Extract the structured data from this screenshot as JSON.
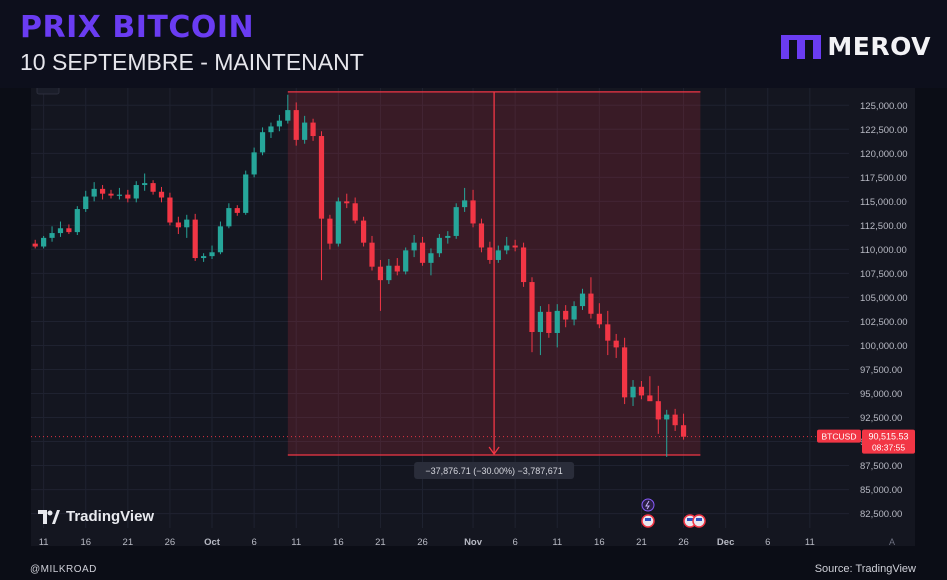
{
  "header": {
    "title": "PRIX BITCOIN",
    "subtitle": "10 SEPTEMBRE - MAINTENANT",
    "brand": "MEROV"
  },
  "footer": {
    "handle": "@MILKROAD",
    "source": "Source: TradingView"
  },
  "watermark": "TradingView",
  "colors": {
    "up": "#26a69a",
    "down": "#f23645",
    "accent": "#6a3cf2",
    "background": "#141620"
  },
  "chart_data": {
    "type": "candlestick",
    "symbol": "BTCUSD",
    "ylim": [
      81000,
      126800
    ],
    "y_ticks": [
      82500,
      85000,
      87500,
      90000,
      92500,
      95000,
      97500,
      100000,
      102500,
      105000,
      107500,
      110000,
      112500,
      115000,
      117500,
      120000,
      122500,
      125000
    ],
    "y_tick_labels": [
      "82,500.00",
      "85,000.00",
      "87,500.00",
      "90,000.00",
      "92,500.00",
      "95,000.00",
      "97,500.00",
      "100,000.00",
      "102,500.00",
      "105,000.00",
      "107,500.00",
      "110,000.00",
      "112,500.00",
      "115,000.00",
      "117,500.00",
      "120,000.00",
      "122,500.00",
      "125,000.00"
    ],
    "x_ticks": [
      {
        "day": 11,
        "label": "11"
      },
      {
        "day": 16,
        "label": "16"
      },
      {
        "day": 21,
        "label": "21"
      },
      {
        "day": 26,
        "label": "26"
      },
      {
        "day": 31,
        "label": "Oct"
      },
      {
        "day": 36,
        "label": "6"
      },
      {
        "day": 41,
        "label": "11"
      },
      {
        "day": 46,
        "label": "16"
      },
      {
        "day": 51,
        "label": "21"
      },
      {
        "day": 56,
        "label": "26"
      },
      {
        "day": 62,
        "label": "Nov"
      },
      {
        "day": 67,
        "label": "6"
      },
      {
        "day": 72,
        "label": "11"
      },
      {
        "day": 77,
        "label": "16"
      },
      {
        "day": 82,
        "label": "21"
      },
      {
        "day": 87,
        "label": "26"
      },
      {
        "day": 92,
        "label": "Dec"
      },
      {
        "day": 97,
        "label": "6"
      },
      {
        "day": 102,
        "label": "11"
      }
    ],
    "candles": [
      {
        "day": 10,
        "o": 110600,
        "h": 111000,
        "l": 110100,
        "c": 110300
      },
      {
        "day": 11,
        "o": 110300,
        "h": 111400,
        "l": 110100,
        "c": 111200
      },
      {
        "day": 12,
        "o": 111200,
        "h": 112400,
        "l": 110800,
        "c": 111700
      },
      {
        "day": 13,
        "o": 111700,
        "h": 112900,
        "l": 111300,
        "c": 112200
      },
      {
        "day": 14,
        "o": 112200,
        "h": 112600,
        "l": 111600,
        "c": 111800
      },
      {
        "day": 15,
        "o": 111800,
        "h": 114500,
        "l": 111500,
        "c": 114200
      },
      {
        "day": 16,
        "o": 114200,
        "h": 116100,
        "l": 113900,
        "c": 115500
      },
      {
        "day": 17,
        "o": 115500,
        "h": 117000,
        "l": 115000,
        "c": 116300
      },
      {
        "day": 18,
        "o": 116300,
        "h": 116700,
        "l": 115200,
        "c": 115800
      },
      {
        "day": 19,
        "o": 115800,
        "h": 116200,
        "l": 115300,
        "c": 115600
      },
      {
        "day": 20,
        "o": 115600,
        "h": 116400,
        "l": 115200,
        "c": 115700
      },
      {
        "day": 21,
        "o": 115700,
        "h": 116200,
        "l": 114900,
        "c": 115300
      },
      {
        "day": 22,
        "o": 115300,
        "h": 117100,
        "l": 114900,
        "c": 116700
      },
      {
        "day": 23,
        "o": 116700,
        "h": 117900,
        "l": 116100,
        "c": 116900
      },
      {
        "day": 24,
        "o": 116900,
        "h": 117200,
        "l": 115700,
        "c": 116000
      },
      {
        "day": 25,
        "o": 116000,
        "h": 116500,
        "l": 114900,
        "c": 115400
      },
      {
        "day": 26,
        "o": 115400,
        "h": 115900,
        "l": 112500,
        "c": 112800
      },
      {
        "day": 27,
        "o": 112800,
        "h": 113400,
        "l": 111600,
        "c": 112300
      },
      {
        "day": 28,
        "o": 112300,
        "h": 113600,
        "l": 111200,
        "c": 113100
      },
      {
        "day": 29,
        "o": 113100,
        "h": 113700,
        "l": 108800,
        "c": 109100
      },
      {
        "day": 30,
        "o": 109100,
        "h": 109600,
        "l": 108700,
        "c": 109300
      },
      {
        "day": 31,
        "o": 109300,
        "h": 110400,
        "l": 109000,
        "c": 109700
      },
      {
        "day": 32,
        "o": 109700,
        "h": 112900,
        "l": 109500,
        "c": 112400
      },
      {
        "day": 33,
        "o": 112400,
        "h": 114800,
        "l": 112200,
        "c": 114300
      },
      {
        "day": 34,
        "o": 114300,
        "h": 114600,
        "l": 113500,
        "c": 113800
      },
      {
        "day": 35,
        "o": 113800,
        "h": 118200,
        "l": 113600,
        "c": 117800
      },
      {
        "day": 36,
        "o": 117800,
        "h": 120600,
        "l": 117500,
        "c": 120100
      },
      {
        "day": 37,
        "o": 120100,
        "h": 122700,
        "l": 119800,
        "c": 122200
      },
      {
        "day": 38,
        "o": 122200,
        "h": 123200,
        "l": 121600,
        "c": 122800
      },
      {
        "day": 39,
        "o": 122800,
        "h": 124000,
        "l": 122300,
        "c": 123400
      },
      {
        "day": 40,
        "o": 123400,
        "h": 126100,
        "l": 123100,
        "c": 124500
      },
      {
        "day": 41,
        "o": 124500,
        "h": 125300,
        "l": 120800,
        "c": 121400
      },
      {
        "day": 42,
        "o": 121400,
        "h": 123900,
        "l": 121000,
        "c": 123200
      },
      {
        "day": 43,
        "o": 123200,
        "h": 123600,
        "l": 121300,
        "c": 121800
      },
      {
        "day": 44,
        "o": 121800,
        "h": 122300,
        "l": 106800,
        "c": 113200
      },
      {
        "day": 45,
        "o": 113200,
        "h": 113600,
        "l": 110000,
        "c": 110600
      },
      {
        "day": 46,
        "o": 110600,
        "h": 115400,
        "l": 110300,
        "c": 115000
      },
      {
        "day": 47,
        "o": 115000,
        "h": 115800,
        "l": 114300,
        "c": 114800
      },
      {
        "day": 48,
        "o": 114800,
        "h": 115400,
        "l": 112700,
        "c": 113000
      },
      {
        "day": 49,
        "o": 113000,
        "h": 113400,
        "l": 110300,
        "c": 110700
      },
      {
        "day": 50,
        "o": 110700,
        "h": 111400,
        "l": 107800,
        "c": 108200
      },
      {
        "day": 51,
        "o": 108200,
        "h": 108900,
        "l": 103600,
        "c": 106800
      },
      {
        "day": 52,
        "o": 106800,
        "h": 109000,
        "l": 106400,
        "c": 108300
      },
      {
        "day": 53,
        "o": 108300,
        "h": 109100,
        "l": 107300,
        "c": 107700
      },
      {
        "day": 54,
        "o": 107700,
        "h": 110200,
        "l": 107400,
        "c": 109900
      },
      {
        "day": 55,
        "o": 109900,
        "h": 111500,
        "l": 109200,
        "c": 110700
      },
      {
        "day": 56,
        "o": 110700,
        "h": 111300,
        "l": 108300,
        "c": 108600
      },
      {
        "day": 57,
        "o": 108600,
        "h": 110100,
        "l": 107300,
        "c": 109600
      },
      {
        "day": 58,
        "o": 109600,
        "h": 111600,
        "l": 109200,
        "c": 111200
      },
      {
        "day": 59,
        "o": 111200,
        "h": 111900,
        "l": 110600,
        "c": 111400
      },
      {
        "day": 60,
        "o": 111400,
        "h": 114800,
        "l": 111100,
        "c": 114400
      },
      {
        "day": 61,
        "o": 114400,
        "h": 116400,
        "l": 113900,
        "c": 115100
      },
      {
        "day": 62,
        "o": 115100,
        "h": 116200,
        "l": 112300,
        "c": 112700
      },
      {
        "day": 63,
        "o": 112700,
        "h": 113200,
        "l": 109700,
        "c": 110200
      },
      {
        "day": 64,
        "o": 110200,
        "h": 110800,
        "l": 108500,
        "c": 108900
      },
      {
        "day": 65,
        "o": 108900,
        "h": 110400,
        "l": 108600,
        "c": 109900
      },
      {
        "day": 66,
        "o": 109900,
        "h": 111300,
        "l": 109500,
        "c": 110400
      },
      {
        "day": 67,
        "o": 110400,
        "h": 111000,
        "l": 109800,
        "c": 110200
      },
      {
        "day": 68,
        "o": 110200,
        "h": 110700,
        "l": 106100,
        "c": 106600
      },
      {
        "day": 69,
        "o": 106600,
        "h": 107100,
        "l": 99300,
        "c": 101400
      },
      {
        "day": 70,
        "o": 101400,
        "h": 104100,
        "l": 99000,
        "c": 103500
      },
      {
        "day": 71,
        "o": 103500,
        "h": 104300,
        "l": 100800,
        "c": 101300
      },
      {
        "day": 72,
        "o": 101300,
        "h": 104300,
        "l": 99800,
        "c": 103600
      },
      {
        "day": 73,
        "o": 103600,
        "h": 104200,
        "l": 101900,
        "c": 102700
      },
      {
        "day": 74,
        "o": 102700,
        "h": 104600,
        "l": 102100,
        "c": 104100
      },
      {
        "day": 75,
        "o": 104100,
        "h": 105900,
        "l": 103700,
        "c": 105400
      },
      {
        "day": 76,
        "o": 105400,
        "h": 107100,
        "l": 102800,
        "c": 103300
      },
      {
        "day": 77,
        "o": 103300,
        "h": 104400,
        "l": 101800,
        "c": 102200
      },
      {
        "day": 78,
        "o": 102200,
        "h": 103600,
        "l": 99000,
        "c": 100500
      },
      {
        "day": 79,
        "o": 100500,
        "h": 101200,
        "l": 98700,
        "c": 99800
      },
      {
        "day": 80,
        "o": 99800,
        "h": 100800,
        "l": 93900,
        "c": 94600
      },
      {
        "day": 81,
        "o": 94600,
        "h": 96400,
        "l": 93700,
        "c": 95700
      },
      {
        "day": 82,
        "o": 95700,
        "h": 96300,
        "l": 94400,
        "c": 94800
      },
      {
        "day": 83,
        "o": 94800,
        "h": 96800,
        "l": 94300,
        "c": 94200
      },
      {
        "day": 84,
        "o": 94200,
        "h": 95800,
        "l": 90800,
        "c": 92300
      },
      {
        "day": 85,
        "o": 92300,
        "h": 93300,
        "l": 88400,
        "c": 92800
      },
      {
        "day": 86,
        "o": 92800,
        "h": 93400,
        "l": 91100,
        "c": 91700
      },
      {
        "day": 87,
        "o": 91700,
        "h": 92900,
        "l": 90200,
        "c": 90500
      }
    ],
    "measure": {
      "start_day": 40,
      "end_day": 89,
      "top": 126400,
      "bottom": 88600,
      "label": "−37,876.71 (−30.00%) −3,787,671"
    },
    "current": {
      "price": 90515.53,
      "price_label": "90,515.53",
      "countdown": "08:37:55",
      "symbol_tag": "BTCUSD"
    },
    "grid": true,
    "axis_extra_label": "A"
  }
}
